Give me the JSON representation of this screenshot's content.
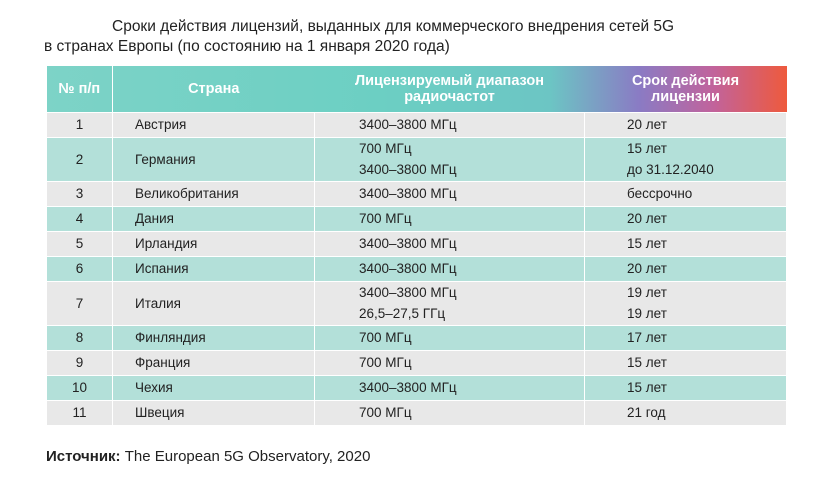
{
  "title": {
    "line1": "Сроки действия лицензий, выданных для коммерческого внедрения сетей 5G",
    "line2": "в странах Европы (по состоянию на 1 января 2020 года)"
  },
  "table": {
    "headers": {
      "num": "№ п/п",
      "country": "Страна",
      "range_l1": "Лицензируемый диапазон",
      "range_l2": "радиочастот",
      "term_l1": "Срок действия",
      "term_l2": "лицензии"
    },
    "rows": [
      {
        "num": "1",
        "country": "Австрия",
        "range": [
          "3400–3800 МГц"
        ],
        "term": [
          "20 лет"
        ]
      },
      {
        "num": "2",
        "country": "Германия",
        "range": [
          "700 МГц",
          "3400–3800 МГц"
        ],
        "term": [
          "15 лет",
          "до 31.12.2040"
        ]
      },
      {
        "num": "3",
        "country": "Великобритания",
        "range": [
          "3400–3800 МГц"
        ],
        "term": [
          "бессрочно"
        ]
      },
      {
        "num": "4",
        "country": "Дания",
        "range": [
          "700 МГц"
        ],
        "term": [
          "20 лет"
        ]
      },
      {
        "num": "5",
        "country": "Ирландия",
        "range": [
          "3400–3800 МГц"
        ],
        "term": [
          "15 лет"
        ]
      },
      {
        "num": "6",
        "country": "Испания",
        "range": [
          "3400–3800 МГц"
        ],
        "term": [
          "20 лет"
        ]
      },
      {
        "num": "7",
        "country": "Италия",
        "range": [
          "3400–3800 МГц",
          "26,5–27,5 ГГц"
        ],
        "term": [
          "19 лет",
          "19 лет"
        ]
      },
      {
        "num": "8",
        "country": "Финляндия",
        "range": [
          "700 МГц"
        ],
        "term": [
          "17 лет"
        ]
      },
      {
        "num": "9",
        "country": "Франция",
        "range": [
          "700 МГц"
        ],
        "term": [
          "15 лет"
        ]
      },
      {
        "num": "10",
        "country": "Чехия",
        "range": [
          "3400–3800 МГц"
        ],
        "term": [
          "15 лет"
        ]
      },
      {
        "num": "11",
        "country": "Швеция",
        "range": [
          "700 МГц"
        ],
        "term": [
          "21 год"
        ]
      }
    ]
  },
  "source": {
    "label": "Источник:",
    "text": " The European 5G Observatory, 2020"
  },
  "colors": {
    "row_light": "#e8e8e8",
    "row_teal": "#b3e0d9",
    "header_teal": "#6ccfc3",
    "header_orange": "#ee5a3d"
  }
}
